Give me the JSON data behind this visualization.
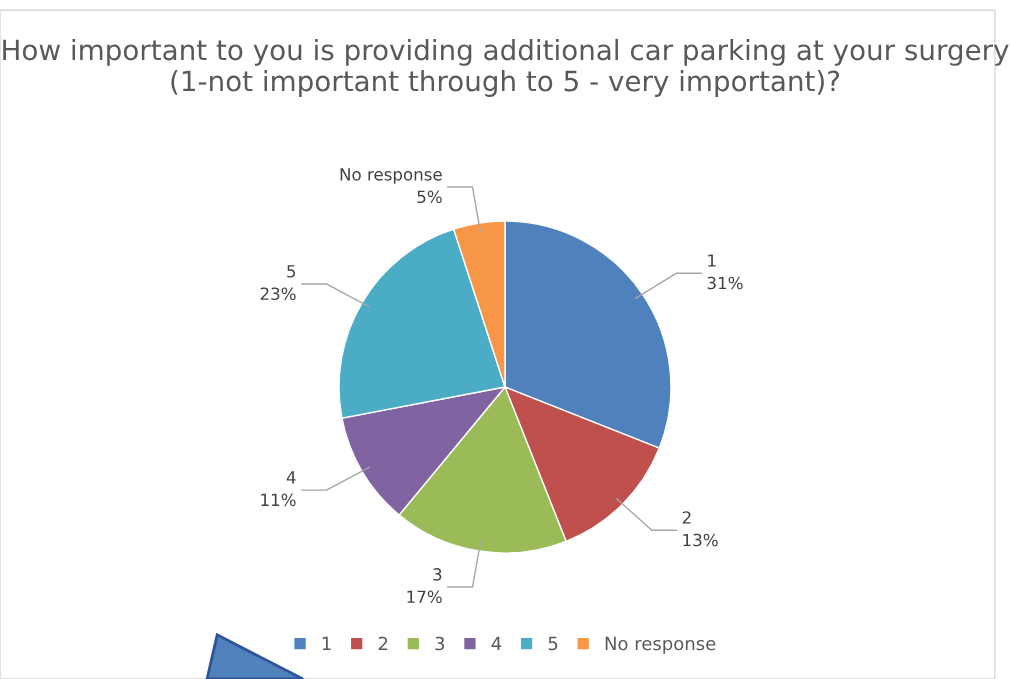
{
  "chart_data": {
    "type": "pie",
    "title": "How important to you is providing additional car parking at your surgery (1-not important through to 5 - very important)?",
    "categories": [
      "1",
      "2",
      "3",
      "4",
      "5",
      "No response"
    ],
    "values": [
      31,
      13,
      17,
      11,
      23,
      5
    ],
    "value_labels": [
      "31%",
      "13%",
      "17%",
      "11%",
      "23%",
      "5%"
    ],
    "colors": [
      "#4f81bd",
      "#c0504d",
      "#9bbb59",
      "#8064a2",
      "#4bacc6",
      "#f79646"
    ],
    "legend": "bottom"
  }
}
